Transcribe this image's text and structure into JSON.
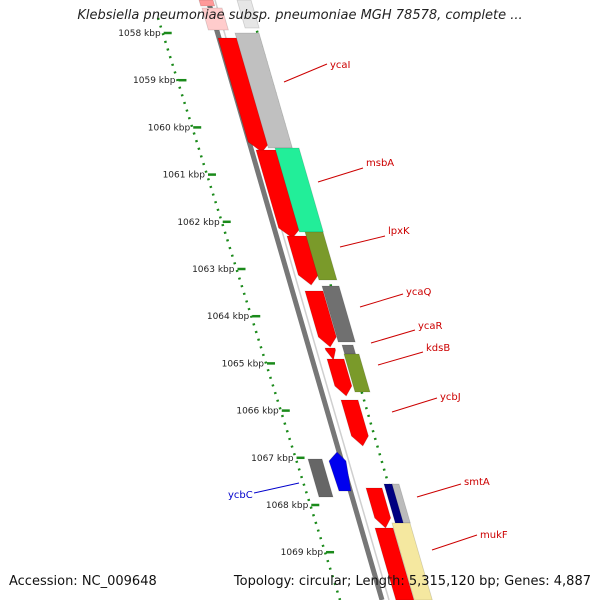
{
  "title": "Klebsiella pneumoniae subsp. pneumoniae MGH 78578, complete ...",
  "footer": {
    "accession": "Accession: NC_009648",
    "summary": "Topology: circular; Length: 5,315,120 bp; Genes: 4,887"
  },
  "ticks": [
    {
      "label": "1058 kbp",
      "value": 1058
    },
    {
      "label": "1059 kbp",
      "value": 1059
    },
    {
      "label": "1060 kbp",
      "value": 1060
    },
    {
      "label": "1061 kbp",
      "value": 1061
    },
    {
      "label": "1062 kbp",
      "value": 1062
    },
    {
      "label": "1063 kbp",
      "value": 1063
    },
    {
      "label": "1064 kbp",
      "value": 1064
    },
    {
      "label": "1065 kbp",
      "value": 1065
    },
    {
      "label": "1066 kbp",
      "value": 1066
    },
    {
      "label": "1067 kbp",
      "value": 1067
    },
    {
      "label": "1068 kbp",
      "value": 1068
    },
    {
      "label": "1069 kbp",
      "value": 1069
    }
  ],
  "genes": [
    {
      "name": "ycaI",
      "color": "#cc0000"
    },
    {
      "name": "msbA",
      "color": "#cc0000"
    },
    {
      "name": "lpxK",
      "color": "#cc0000"
    },
    {
      "name": "ycaQ",
      "color": "#cc0000"
    },
    {
      "name": "ycaR",
      "color": "#cc0000"
    },
    {
      "name": "kdsB",
      "color": "#cc0000"
    },
    {
      "name": "ycbJ",
      "color": "#cc0000"
    },
    {
      "name": "ycbC",
      "color": "#0000cc"
    },
    {
      "name": "smtA",
      "color": "#cc0000"
    },
    {
      "name": "mukF",
      "color": "#cc0000"
    }
  ],
  "colors": {
    "cds": "#ff0000",
    "backbone": "#777777",
    "tick_track": "#1a8a1a",
    "cog_gray": "#c0c0c0",
    "cog_green": "#22ee99",
    "cog_olive": "#7a9a2a",
    "cog_darkgray": "#707070",
    "cog_navy": "#000080",
    "cog_yellow": "#f5e8a0",
    "blue_cds": "#0000ee"
  }
}
